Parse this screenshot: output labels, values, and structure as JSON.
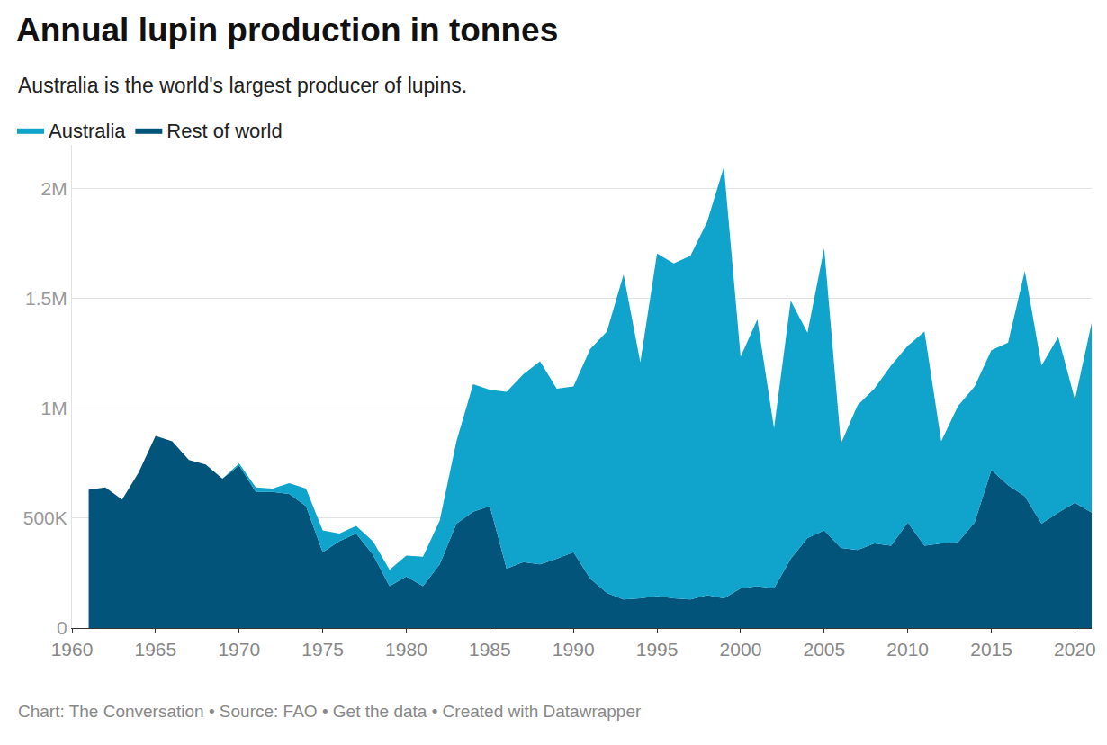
{
  "chart_data": {
    "type": "area",
    "title": "Annual lupin production in tonnes",
    "subtitle": "Australia is the world's largest producer of lupins.",
    "source": "Chart: The Conversation • Source: FAO • Get the data • Created with Datawrapper",
    "stacked": true,
    "grid": true,
    "legend": "top-left",
    "x": [
      1961,
      1962,
      1963,
      1964,
      1965,
      1966,
      1967,
      1968,
      1969,
      1970,
      1971,
      1972,
      1973,
      1974,
      1975,
      1976,
      1977,
      1978,
      1979,
      1980,
      1981,
      1982,
      1983,
      1984,
      1985,
      1986,
      1987,
      1988,
      1989,
      1990,
      1991,
      1992,
      1993,
      1994,
      1995,
      1996,
      1997,
      1998,
      1999,
      2000,
      2001,
      2002,
      2003,
      2004,
      2005,
      2006,
      2007,
      2008,
      2009,
      2010,
      2011,
      2012,
      2013,
      2014,
      2015,
      2016,
      2017,
      2018,
      2019,
      2020,
      2021
    ],
    "series": [
      {
        "name": "Rest of world",
        "color": "#03547a",
        "values": [
          630000,
          640000,
          585000,
          710000,
          875000,
          850000,
          765000,
          745000,
          680000,
          740000,
          620000,
          620000,
          610000,
          555000,
          345000,
          395000,
          430000,
          335000,
          190000,
          235000,
          190000,
          290000,
          475000,
          530000,
          555000,
          270000,
          300000,
          290000,
          315000,
          345000,
          225000,
          160000,
          130000,
          135000,
          145000,
          135000,
          130000,
          150000,
          135000,
          180000,
          190000,
          180000,
          315000,
          410000,
          445000,
          365000,
          355000,
          385000,
          375000,
          480000,
          375000,
          385000,
          390000,
          480000,
          720000,
          650000,
          600000,
          475000,
          525000,
          570000,
          525000
        ]
      },
      {
        "name": "Australia",
        "color": "#10a3cc",
        "values": [
          0,
          0,
          0,
          0,
          0,
          0,
          0,
          0,
          0,
          10000,
          20000,
          15000,
          50000,
          80000,
          100000,
          35000,
          35000,
          60000,
          75000,
          95000,
          135000,
          200000,
          375000,
          580000,
          530000,
          805000,
          855000,
          925000,
          775000,
          755000,
          1045000,
          1190000,
          1480000,
          1075000,
          1560000,
          1525000,
          1565000,
          1700000,
          1965000,
          1055000,
          1215000,
          730000,
          1175000,
          935000,
          1285000,
          475000,
          660000,
          705000,
          820000,
          805000,
          975000,
          465000,
          620000,
          620000,
          545000,
          650000,
          1025000,
          720000,
          800000,
          470000,
          865000
        ]
      }
    ],
    "xlim": [
      1960,
      2021
    ],
    "xticks": [
      1960,
      1965,
      1970,
      1975,
      1980,
      1985,
      1990,
      1995,
      2000,
      2005,
      2010,
      2015,
      2020
    ],
    "ylim": [
      0,
      2200000
    ],
    "yticks": [
      0,
      {
        "value": 500000,
        "label": "500K"
      },
      {
        "value": 1000000,
        "label": "1M"
      },
      {
        "value": 1500000,
        "label": "1.5M"
      },
      {
        "value": 2000000,
        "label": "2M"
      }
    ]
  }
}
